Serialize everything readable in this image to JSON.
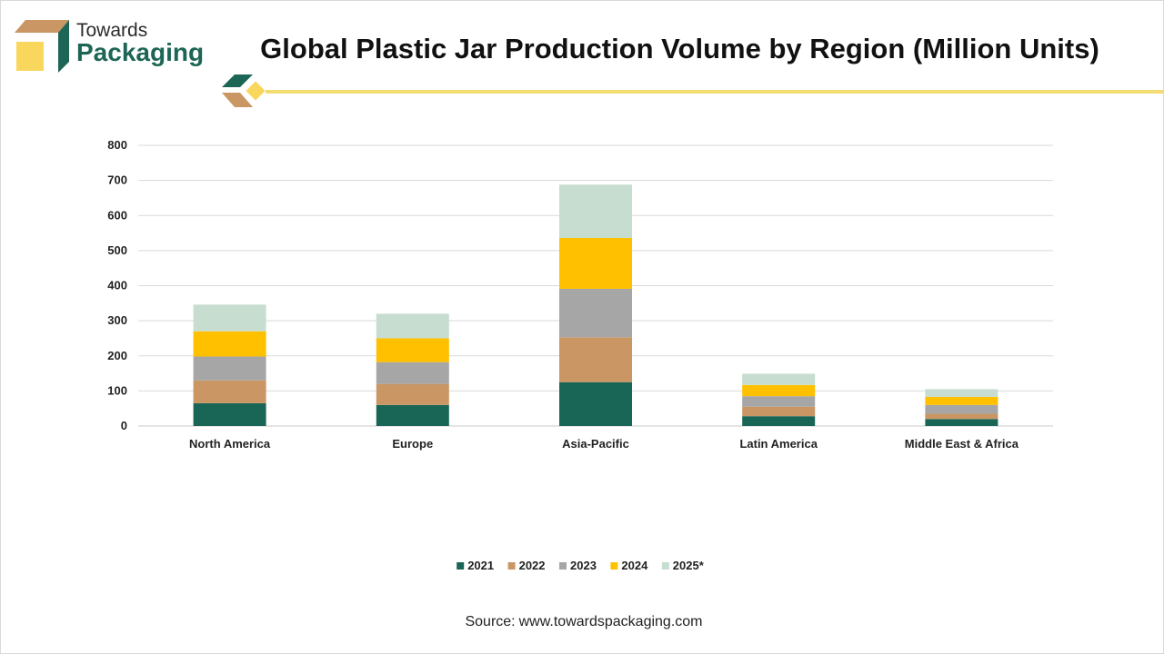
{
  "brand": {
    "line1": "Towards",
    "line2": "Packaging",
    "colors": {
      "green": "#1d6655",
      "tan": "#c79a6b",
      "yellow": "#f9d65c"
    }
  },
  "source": {
    "label": "Source:",
    "url": "www.towardspackaging.com"
  },
  "chart_data": {
    "type": "bar",
    "stacked": true,
    "title": "Global Plastic Jar Production Volume by Region (Million Units)",
    "xlabel": "",
    "ylabel": "",
    "ylim": [
      0,
      800
    ],
    "yticks": [
      0,
      100,
      200,
      300,
      400,
      500,
      600,
      700,
      800
    ],
    "grid": true,
    "legend_position": "bottom",
    "categories": [
      "North America",
      "Europe",
      "Asia-Pacific",
      "Latin America",
      "Middle East & Africa"
    ],
    "series": [
      {
        "name": "2021",
        "color": "#1a6656",
        "values": [
          65,
          60,
          125,
          28,
          20
        ]
      },
      {
        "name": "2022",
        "color": "#c99664",
        "values": [
          65,
          60,
          128,
          27,
          15
        ]
      },
      {
        "name": "2023",
        "color": "#a6a6a6",
        "values": [
          68,
          62,
          138,
          30,
          25
        ]
      },
      {
        "name": "2024",
        "color": "#ffc000",
        "values": [
          72,
          68,
          145,
          32,
          23
        ]
      },
      {
        "name": "2025*",
        "color": "#c7ddd0",
        "values": [
          76,
          70,
          152,
          32,
          22
        ]
      }
    ]
  }
}
